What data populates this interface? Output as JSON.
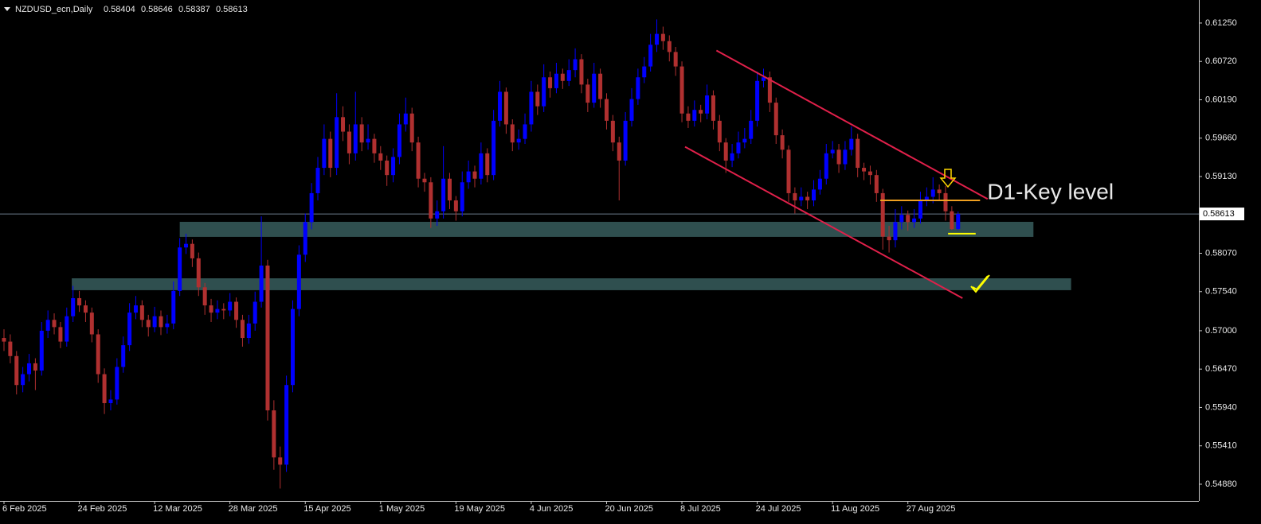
{
  "chart_data": {
    "type": "candlestick",
    "symbol": "NZDUSD_ecn,Daily",
    "up_color": "#0000ff",
    "down_color": "#b03030",
    "ylim": [
      0.54649,
      0.61568
    ],
    "yticks": [
      {
        "value": 0.6125,
        "label": "0.61250"
      },
      {
        "value": 0.6072,
        "label": "0.60720"
      },
      {
        "value": 0.6019,
        "label": "0.60190"
      },
      {
        "value": 0.5966,
        "label": "0.59660"
      },
      {
        "value": 0.5913,
        "label": "0.59130"
      },
      {
        "value": 0.5807,
        "label": "0.58070"
      },
      {
        "value": 0.5754,
        "label": "0.57540"
      },
      {
        "value": 0.57,
        "label": "0.57000"
      },
      {
        "value": 0.5647,
        "label": "0.56470"
      },
      {
        "value": 0.5594,
        "label": "0.55940"
      },
      {
        "value": 0.5541,
        "label": "0.55410"
      },
      {
        "value": 0.5488,
        "label": "0.54880"
      }
    ],
    "categories": [
      "6 Feb 2025",
      null,
      null,
      null,
      null,
      null,
      null,
      null,
      null,
      null,
      null,
      null,
      "24 Feb 2025",
      null,
      null,
      null,
      null,
      null,
      null,
      null,
      null,
      null,
      null,
      null,
      "12 Mar 2025",
      null,
      null,
      null,
      null,
      null,
      null,
      null,
      null,
      null,
      null,
      null,
      "28 Mar 2025",
      null,
      null,
      null,
      null,
      null,
      null,
      null,
      null,
      null,
      null,
      null,
      "15 Apr 2025",
      null,
      null,
      null,
      null,
      null,
      null,
      null,
      null,
      null,
      null,
      null,
      "1 May 2025",
      null,
      null,
      null,
      null,
      null,
      null,
      null,
      null,
      null,
      null,
      null,
      "19 May 2025",
      null,
      null,
      null,
      null,
      null,
      null,
      null,
      null,
      null,
      null,
      null,
      "4 Jun 2025",
      null,
      null,
      null,
      null,
      null,
      null,
      null,
      null,
      null,
      null,
      null,
      "20 Jun 2025",
      null,
      null,
      null,
      null,
      null,
      null,
      null,
      null,
      null,
      null,
      null,
      "8 Jul 2025",
      null,
      null,
      null,
      null,
      null,
      null,
      null,
      null,
      null,
      null,
      null,
      "24 Jul 2025",
      null,
      null,
      null,
      null,
      null,
      null,
      null,
      null,
      null,
      null,
      null,
      "11 Aug 2025",
      null,
      null,
      null,
      null,
      null,
      null,
      null,
      null,
      null,
      null,
      null,
      "27 Aug 2025",
      null,
      null,
      null,
      null,
      null,
      null,
      null,
      null
    ],
    "ohlc": [
      [
        0.569,
        0.5702,
        0.5672,
        0.5685
      ],
      [
        0.5685,
        0.5695,
        0.5655,
        0.5665
      ],
      [
        0.5665,
        0.5672,
        0.5612,
        0.5625
      ],
      [
        0.5625,
        0.565,
        0.5615,
        0.564
      ],
      [
        0.564,
        0.5668,
        0.563,
        0.5655
      ],
      [
        0.5655,
        0.5662,
        0.5618,
        0.5645
      ],
      [
        0.5645,
        0.5712,
        0.5638,
        0.57
      ],
      [
        0.57,
        0.5728,
        0.569,
        0.5715
      ],
      [
        0.5715,
        0.5724,
        0.5695,
        0.5705
      ],
      [
        0.5705,
        0.5712,
        0.5676,
        0.5685
      ],
      [
        0.5685,
        0.5732,
        0.5678,
        0.572
      ],
      [
        0.572,
        0.5762,
        0.5712,
        0.5745
      ],
      [
        0.5745,
        0.5755,
        0.5726,
        0.5735
      ],
      [
        0.5735,
        0.5742,
        0.5712,
        0.5725
      ],
      [
        0.5725,
        0.5732,
        0.5684,
        0.5695
      ],
      [
        0.5695,
        0.5702,
        0.5628,
        0.564
      ],
      [
        0.564,
        0.5648,
        0.5585,
        0.56
      ],
      [
        0.56,
        0.5618,
        0.559,
        0.5605
      ],
      [
        0.5605,
        0.5662,
        0.5598,
        0.565
      ],
      [
        0.565,
        0.5692,
        0.5642,
        0.568
      ],
      [
        0.568,
        0.5738,
        0.5672,
        0.5725
      ],
      [
        0.5725,
        0.5748,
        0.5716,
        0.5735
      ],
      [
        0.5735,
        0.5742,
        0.5705,
        0.5715
      ],
      [
        0.5715,
        0.5722,
        0.5692,
        0.5705
      ],
      [
        0.5705,
        0.5733,
        0.5698,
        0.572
      ],
      [
        0.572,
        0.5728,
        0.5694,
        0.5705
      ],
      [
        0.5705,
        0.5722,
        0.5696,
        0.571
      ],
      [
        0.571,
        0.5768,
        0.5702,
        0.5755
      ],
      [
        0.5755,
        0.5828,
        0.5748,
        0.5815
      ],
      [
        0.5815,
        0.5834,
        0.5806,
        0.582
      ],
      [
        0.582,
        0.5826,
        0.5788,
        0.58
      ],
      [
        0.58,
        0.5808,
        0.5748,
        0.576
      ],
      [
        0.576,
        0.5766,
        0.5722,
        0.5735
      ],
      [
        0.5735,
        0.5744,
        0.5712,
        0.5725
      ],
      [
        0.5725,
        0.5742,
        0.5716,
        0.573
      ],
      [
        0.573,
        0.5738,
        0.5716,
        0.5728
      ],
      [
        0.5728,
        0.5752,
        0.572,
        0.574
      ],
      [
        0.574,
        0.5746,
        0.5704,
        0.5715
      ],
      [
        0.5715,
        0.5722,
        0.5678,
        0.569
      ],
      [
        0.569,
        0.5722,
        0.5682,
        0.571
      ],
      [
        0.571,
        0.5754,
        0.57,
        0.574
      ],
      [
        0.574,
        0.5858,
        0.5732,
        0.579
      ],
      [
        0.579,
        0.5798,
        0.5576,
        0.559
      ],
      [
        0.559,
        0.5604,
        0.5508,
        0.5525
      ],
      [
        0.5525,
        0.554,
        0.5482,
        0.5515
      ],
      [
        0.5515,
        0.5638,
        0.5505,
        0.5625
      ],
      [
        0.5625,
        0.5742,
        0.5615,
        0.573
      ],
      [
        0.573,
        0.5818,
        0.572,
        0.5805
      ],
      [
        0.5805,
        0.5862,
        0.5795,
        0.585
      ],
      [
        0.585,
        0.5904,
        0.584,
        0.589
      ],
      [
        0.589,
        0.594,
        0.588,
        0.5925
      ],
      [
        0.5925,
        0.5985,
        0.5915,
        0.5965
      ],
      [
        0.5965,
        0.5975,
        0.5912,
        0.5925
      ],
      [
        0.5925,
        0.6028,
        0.5915,
        0.5995
      ],
      [
        0.5995,
        0.601,
        0.5962,
        0.5975
      ],
      [
        0.5975,
        0.5985,
        0.593,
        0.5945
      ],
      [
        0.5945,
        0.603,
        0.5935,
        0.5985
      ],
      [
        0.5985,
        0.5995,
        0.5948,
        0.596
      ],
      [
        0.596,
        0.5985,
        0.595,
        0.5965
      ],
      [
        0.5965,
        0.5972,
        0.5932,
        0.5945
      ],
      [
        0.5945,
        0.5955,
        0.5922,
        0.5935
      ],
      [
        0.5935,
        0.5942,
        0.59,
        0.5915
      ],
      [
        0.5915,
        0.5952,
        0.5905,
        0.594
      ],
      [
        0.594,
        0.6,
        0.593,
        0.5985
      ],
      [
        0.5985,
        0.6022,
        0.5975,
        0.6
      ],
      [
        0.6,
        0.6008,
        0.5948,
        0.596
      ],
      [
        0.596,
        0.5968,
        0.5898,
        0.591
      ],
      [
        0.591,
        0.5918,
        0.5892,
        0.5905
      ],
      [
        0.5905,
        0.5912,
        0.5842,
        0.5855
      ],
      [
        0.5855,
        0.588,
        0.5845,
        0.5865
      ],
      [
        0.5865,
        0.5955,
        0.5855,
        0.591
      ],
      [
        0.591,
        0.5918,
        0.5868,
        0.588
      ],
      [
        0.588,
        0.5886,
        0.5852,
        0.5865
      ],
      [
        0.5865,
        0.592,
        0.5858,
        0.5905
      ],
      [
        0.5905,
        0.5935,
        0.5896,
        0.592
      ],
      [
        0.592,
        0.5928,
        0.5898,
        0.591
      ],
      [
        0.591,
        0.596,
        0.5902,
        0.5945
      ],
      [
        0.5945,
        0.5952,
        0.5905,
        0.5915
      ],
      [
        0.5915,
        0.6005,
        0.5908,
        0.599
      ],
      [
        0.599,
        0.6045,
        0.5982,
        0.603
      ],
      [
        0.603,
        0.6036,
        0.5972,
        0.5985
      ],
      [
        0.5985,
        0.5992,
        0.5948,
        0.596
      ],
      [
        0.596,
        0.5978,
        0.595,
        0.5965
      ],
      [
        0.5965,
        0.6,
        0.5958,
        0.5985
      ],
      [
        0.5985,
        0.6045,
        0.5975,
        0.603
      ],
      [
        0.603,
        0.604,
        0.5998,
        0.601
      ],
      [
        0.601,
        0.6068,
        0.6002,
        0.605
      ],
      [
        0.605,
        0.6058,
        0.6022,
        0.6035
      ],
      [
        0.6035,
        0.607,
        0.6028,
        0.6055
      ],
      [
        0.6055,
        0.6062,
        0.6034,
        0.6045
      ],
      [
        0.6045,
        0.6075,
        0.6038,
        0.606
      ],
      [
        0.606,
        0.609,
        0.605,
        0.6075
      ],
      [
        0.6075,
        0.6082,
        0.6028,
        0.604
      ],
      [
        0.604,
        0.6048,
        0.6002,
        0.6015
      ],
      [
        0.6015,
        0.607,
        0.6008,
        0.6055
      ],
      [
        0.6055,
        0.6062,
        0.6008,
        0.602
      ],
      [
        0.602,
        0.6028,
        0.5978,
        0.599
      ],
      [
        0.599,
        0.5998,
        0.5948,
        0.596
      ],
      [
        0.596,
        0.5968,
        0.588,
        0.5935
      ],
      [
        0.5935,
        0.6002,
        0.5928,
        0.599
      ],
      [
        0.599,
        0.6035,
        0.5982,
        0.602
      ],
      [
        0.602,
        0.6062,
        0.6012,
        0.605
      ],
      [
        0.605,
        0.6078,
        0.6042,
        0.6065
      ],
      [
        0.6065,
        0.611,
        0.6058,
        0.6095
      ],
      [
        0.6095,
        0.613,
        0.6085,
        0.611
      ],
      [
        0.611,
        0.612,
        0.6088,
        0.61
      ],
      [
        0.61,
        0.6108,
        0.6072,
        0.6085
      ],
      [
        0.6085,
        0.6092,
        0.6052,
        0.6065
      ],
      [
        0.6065,
        0.6072,
        0.5988,
        0.6
      ],
      [
        0.6,
        0.601,
        0.598,
        0.599
      ],
      [
        0.599,
        0.6018,
        0.5982,
        0.6005
      ],
      [
        0.6005,
        0.6012,
        0.5988,
        0.6
      ],
      [
        0.6,
        0.604,
        0.5992,
        0.6025
      ],
      [
        0.6025,
        0.6032,
        0.5978,
        0.599
      ],
      [
        0.599,
        0.5998,
        0.5948,
        0.596
      ],
      [
        0.596,
        0.5966,
        0.5918,
        0.5935
      ],
      [
        0.5935,
        0.5958,
        0.5926,
        0.5945
      ],
      [
        0.5945,
        0.5975,
        0.5938,
        0.596
      ],
      [
        0.596,
        0.598,
        0.5952,
        0.5965
      ],
      [
        0.5965,
        0.6005,
        0.5958,
        0.599
      ],
      [
        0.599,
        0.6058,
        0.5982,
        0.6045
      ],
      [
        0.6045,
        0.6062,
        0.6036,
        0.605
      ],
      [
        0.605,
        0.6058,
        0.6002,
        0.6015
      ],
      [
        0.6015,
        0.6022,
        0.5958,
        0.597
      ],
      [
        0.597,
        0.5978,
        0.5938,
        0.595
      ],
      [
        0.595,
        0.5956,
        0.5878,
        0.589
      ],
      [
        0.589,
        0.5898,
        0.5862,
        0.588
      ],
      [
        0.588,
        0.5898,
        0.5872,
        0.5885
      ],
      [
        0.5885,
        0.5892,
        0.5868,
        0.588
      ],
      [
        0.588,
        0.5908,
        0.5872,
        0.5895
      ],
      [
        0.5895,
        0.5922,
        0.5888,
        0.591
      ],
      [
        0.591,
        0.5958,
        0.5902,
        0.5945
      ],
      [
        0.5945,
        0.5962,
        0.5938,
        0.595
      ],
      [
        0.595,
        0.5958,
        0.5918,
        0.593
      ],
      [
        0.593,
        0.5962,
        0.5922,
        0.595
      ],
      [
        0.595,
        0.5982,
        0.5942,
        0.5965
      ],
      [
        0.5965,
        0.5972,
        0.5912,
        0.5925
      ],
      [
        0.5925,
        0.5932,
        0.5908,
        0.592
      ],
      [
        0.592,
        0.5928,
        0.5902,
        0.5915
      ],
      [
        0.5915,
        0.5922,
        0.5878,
        0.589
      ],
      [
        0.589,
        0.5896,
        0.5812,
        0.583
      ],
      [
        0.583,
        0.5845,
        0.5808,
        0.5825
      ],
      [
        0.5825,
        0.5868,
        0.5815,
        0.585
      ],
      [
        0.585,
        0.5872,
        0.584,
        0.586
      ],
      [
        0.586,
        0.5866,
        0.5838,
        0.585
      ],
      [
        0.585,
        0.5868,
        0.5842,
        0.5855
      ],
      [
        0.5855,
        0.5892,
        0.5848,
        0.588
      ],
      [
        0.588,
        0.5898,
        0.5872,
        0.5885
      ],
      [
        0.5885,
        0.5912,
        0.5876,
        0.5895
      ],
      [
        0.5895,
        0.5902,
        0.588,
        0.589
      ],
      [
        0.589,
        0.59,
        0.5852,
        0.5865
      ],
      [
        0.5865,
        0.5872,
        0.58392,
        0.58404
      ],
      [
        0.58404,
        0.58646,
        0.58387,
        0.58613
      ]
    ],
    "zones": [
      {
        "from": 28,
        "to": 164,
        "top": 0.58504,
        "bottom": 0.58296,
        "color": "#2f4f4f"
      },
      {
        "from": 10.8,
        "to": 170,
        "top": 0.57724,
        "bottom": 0.5756,
        "color": "#2f4f4f"
      }
    ],
    "channel_color": "#e0204a",
    "channel_upper": [
      [
        113.5,
        0.6087
      ],
      [
        156.7,
        0.5882
      ]
    ],
    "channel_lower": [
      [
        108.5,
        0.5954
      ],
      [
        152.7,
        0.5745
      ]
    ],
    "key_level": {
      "from": 139.6,
      "to": 155.5,
      "price": 0.588,
      "color": "#f0a020",
      "label": "D1-Key level"
    },
    "target_line": {
      "from": 150.4,
      "to": 154.8,
      "price": 0.5834,
      "color": "#ffff00"
    }
  }
}
